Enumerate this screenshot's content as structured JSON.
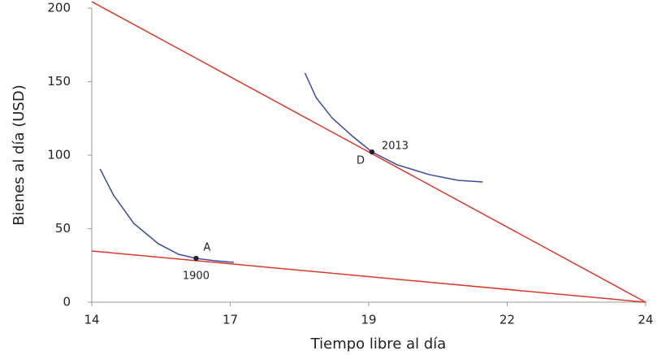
{
  "chart_data": {
    "type": "line",
    "x_label": "Tiempo libre al día",
    "y_label": "Bienes al día (USD)",
    "xlim": [
      14,
      24
    ],
    "xticks": [
      14,
      17,
      19,
      22,
      24
    ],
    "x_scale": "even-ticks",
    "ylim": [
      0,
      200
    ],
    "yticks": [
      0,
      50,
      100,
      150,
      200
    ],
    "grid": false,
    "series": [
      {
        "color": "#d8392b",
        "x": [
          14,
          24
        ],
        "values": [
          204.4,
          0
        ]
      },
      {
        "color": "#d8392b",
        "x": [
          14,
          24
        ],
        "values": [
          34.8,
          0
        ]
      },
      {
        "color": "#3b4a9e",
        "x": [
          14.18,
          14.47,
          14.91,
          15.44,
          15.88,
          16.26,
          16.67,
          17.05
        ],
        "values": [
          90.6,
          72.9,
          53.6,
          39.8,
          32.6,
          29.8,
          28.2,
          27.1
        ]
      },
      {
        "color": "#3b4a9e",
        "x": [
          18.08,
          18.24,
          18.47,
          18.77,
          19.07,
          19.62,
          20.32,
          20.94,
          21.47
        ],
        "values": [
          155.8,
          139.2,
          125.4,
          112.7,
          102.2,
          93.4,
          86.7,
          82.9,
          81.8
        ]
      }
    ],
    "points": [
      {
        "x": 16.26,
        "y": 29.8,
        "label": "A",
        "annotation": "1900"
      },
      {
        "x": 19.07,
        "y": 102.2,
        "label": "D",
        "annotation": "2013"
      }
    ],
    "point_color": "#222222"
  }
}
